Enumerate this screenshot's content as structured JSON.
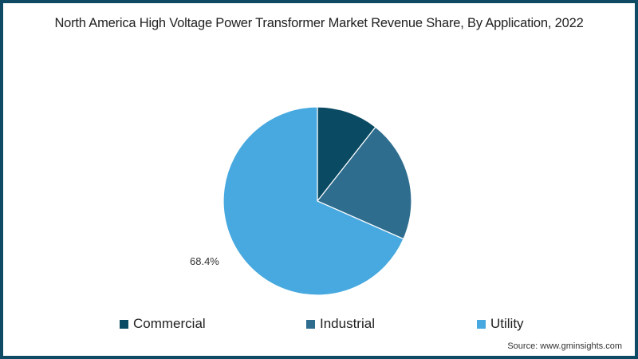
{
  "chart_data": {
    "type": "pie",
    "title": "North America High Voltage Power Transformer Market Revenue Share, By Application, 2022",
    "categories": [
      "Commercial",
      "Industrial",
      "Utility"
    ],
    "values": [
      10.6,
      21.0,
      68.4
    ],
    "colors": [
      "#0a4a63",
      "#2f6d8f",
      "#47a9df"
    ],
    "data_labels": [
      {
        "category": "Utility",
        "text": "68.4%"
      }
    ],
    "legend_position": "bottom",
    "start_angle_deg": 0,
    "direction": "clockwise"
  },
  "header": {
    "title": "North America High Voltage Power Transformer Market Revenue Share, By Application, 2022"
  },
  "legend": {
    "items": [
      {
        "label": "Commercial",
        "color": "#0a4a63"
      },
      {
        "label": "Industrial",
        "color": "#2f6d8f"
      },
      {
        "label": "Utility",
        "color": "#47a9df"
      }
    ]
  },
  "labels": {
    "utility_pct": "68.4%"
  },
  "footer": {
    "source": "Source: www.gminsights.com"
  },
  "theme": {
    "border_color": "#0e4a63",
    "background": "#ffffff"
  }
}
